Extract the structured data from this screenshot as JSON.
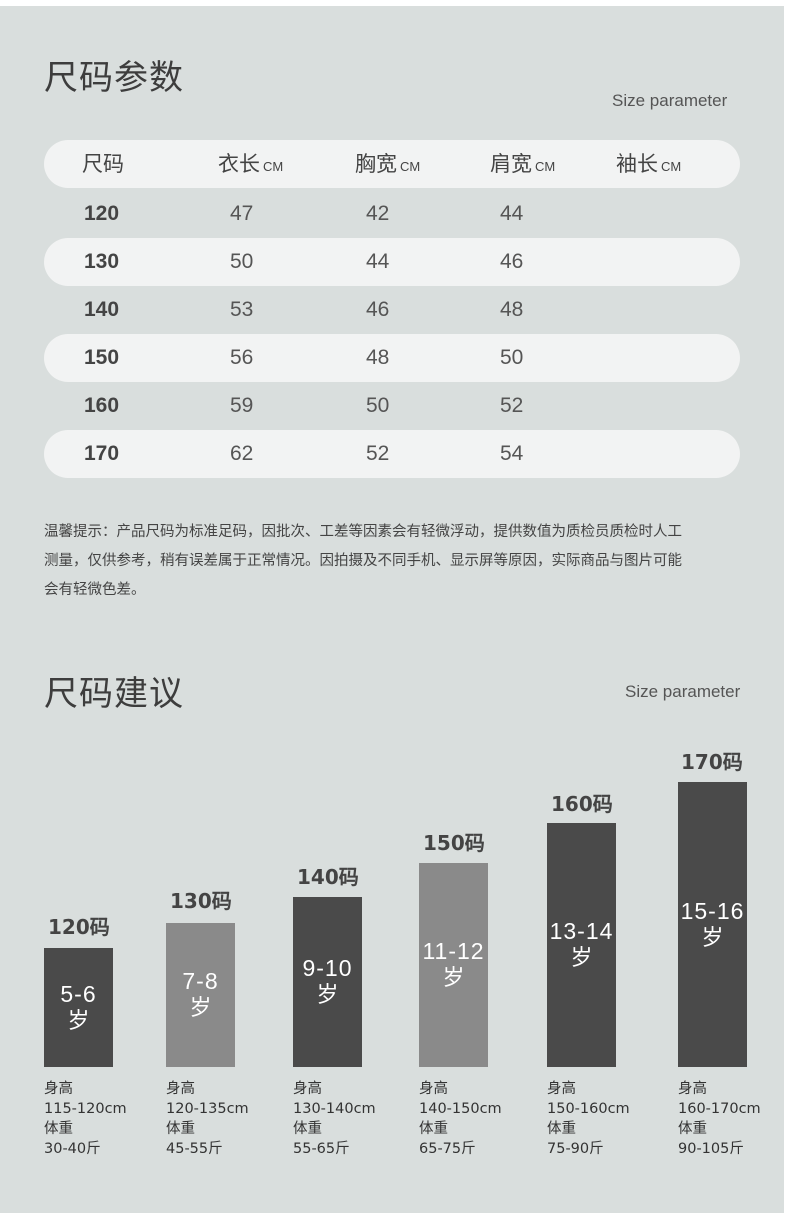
{
  "size_table": {
    "title": "尺码参数",
    "subtitle": "Size parameter",
    "headers": [
      {
        "label": "尺码",
        "unit": ""
      },
      {
        "label": "衣长",
        "unit": "CM"
      },
      {
        "label": "胸宽",
        "unit": "CM"
      },
      {
        "label": "肩宽",
        "unit": "CM"
      },
      {
        "label": "袖长",
        "unit": "CM"
      }
    ],
    "rows": [
      {
        "size": "120",
        "length": "47",
        "chest": "42",
        "shoulder": "44",
        "sleeve": ""
      },
      {
        "size": "130",
        "length": "50",
        "chest": "44",
        "shoulder": "46",
        "sleeve": ""
      },
      {
        "size": "140",
        "length": "53",
        "chest": "46",
        "shoulder": "48",
        "sleeve": ""
      },
      {
        "size": "150",
        "length": "56",
        "chest": "48",
        "shoulder": "50",
        "sleeve": ""
      },
      {
        "size": "160",
        "length": "59",
        "chest": "50",
        "shoulder": "52",
        "sleeve": ""
      },
      {
        "size": "170",
        "length": "62",
        "chest": "52",
        "shoulder": "54",
        "sleeve": ""
      }
    ]
  },
  "tip": {
    "lines": [
      "温馨提示：产品尺码为标准足码，因批次、工差等因素会有轻微浮动，提供数值为质检员质检时人工",
      "测量，仅供参考，稍有误差属于正常情况。因拍摄及不同手机、显示屏等原因，实际商品与图片可能",
      "会有轻微色差。"
    ]
  },
  "size_advice": {
    "title": "尺码建议",
    "subtitle": "Size parameter",
    "age_unit": "岁",
    "height_label": "身高",
    "weight_label": "体重",
    "items": [
      {
        "size": "120码",
        "age": "5-6",
        "height": "115-120cm",
        "weight": "30-40斤",
        "color": "#4a4a4a"
      },
      {
        "size": "130码",
        "age": "7-8",
        "height": "120-135cm",
        "weight": "45-55斤",
        "color": "#8a8a8a"
      },
      {
        "size": "140码",
        "age": "9-10",
        "height": "130-140cm",
        "weight": "55-65斤",
        "color": "#4a4a4a"
      },
      {
        "size": "150码",
        "age": "11-12",
        "height": "140-150cm",
        "weight": "65-75斤",
        "color": "#8a8a8a"
      },
      {
        "size": "160码",
        "age": "13-14",
        "height": "150-160cm",
        "weight": "75-90斤",
        "color": "#4a4a4a"
      },
      {
        "size": "170码",
        "age": "15-16",
        "height": "160-170cm",
        "weight": "90-105斤",
        "color": "#4a4a4a"
      }
    ]
  }
}
